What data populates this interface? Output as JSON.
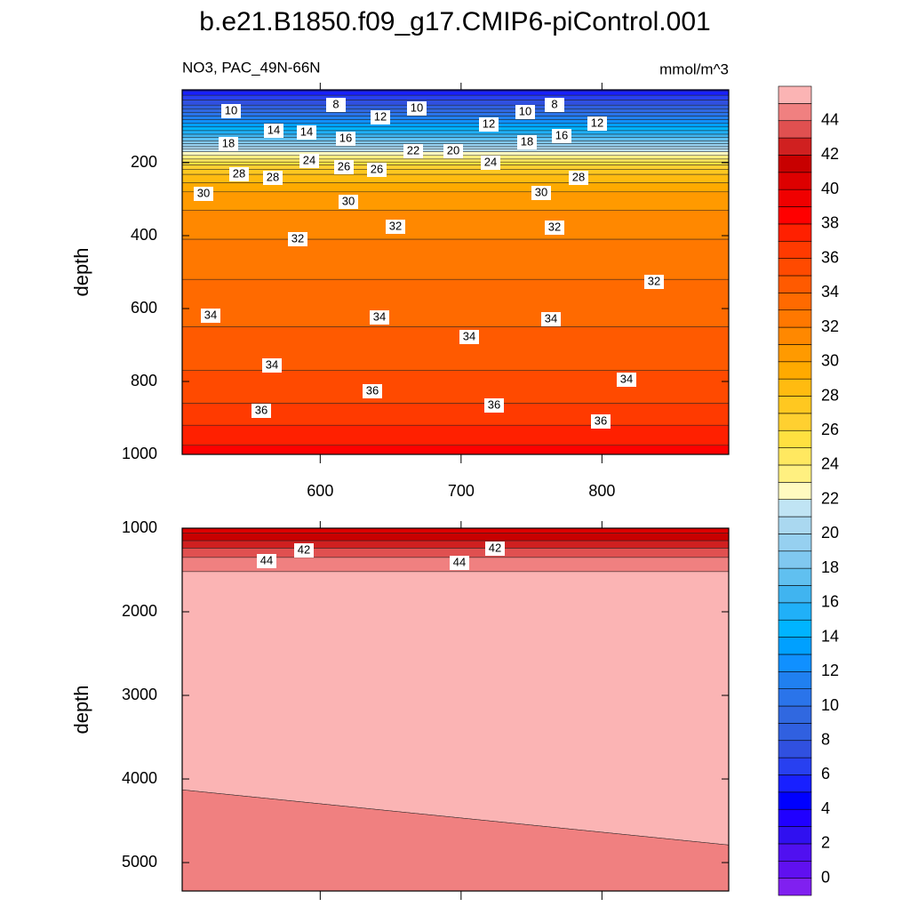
{
  "chart_data": {
    "type": "contour",
    "title": "b.e21.B1850.f09_g17.CMIP6-piControl.001",
    "subtitle_left": "NO3, PAC_49N-66N",
    "subtitle_right": "mmol/m^3",
    "xlim": [
      502,
      890
    ],
    "xticks": [
      600,
      700,
      800
    ],
    "panels": [
      {
        "ylabel": "depth",
        "ylim": [
          0,
          1000
        ],
        "yticks": [
          200,
          400,
          600,
          800,
          1000
        ],
        "show_xticklabels": true,
        "bands": [
          {
            "level": 4,
            "top": 0,
            "bottom": 3
          },
          {
            "level": 5,
            "top": 3,
            "bottom": 15
          },
          {
            "level": 6,
            "top": 15,
            "bottom": 28
          },
          {
            "level": 7,
            "top": 28,
            "bottom": 42
          },
          {
            "level": 8,
            "top": 42,
            "bottom": 52
          },
          {
            "level": 9,
            "top": 52,
            "bottom": 62
          },
          {
            "level": 10,
            "top": 62,
            "bottom": 72
          },
          {
            "level": 11,
            "top": 72,
            "bottom": 82
          },
          {
            "level": 12,
            "top": 82,
            "bottom": 92
          },
          {
            "level": 13,
            "top": 92,
            "bottom": 102
          },
          {
            "level": 14,
            "top": 102,
            "bottom": 112
          },
          {
            "level": 15,
            "top": 112,
            "bottom": 122
          },
          {
            "level": 16,
            "top": 122,
            "bottom": 131
          },
          {
            "level": 17,
            "top": 131,
            "bottom": 140
          },
          {
            "level": 18,
            "top": 140,
            "bottom": 148
          },
          {
            "level": 19,
            "top": 148,
            "bottom": 156
          },
          {
            "level": 20,
            "top": 156,
            "bottom": 163
          },
          {
            "level": 21,
            "top": 163,
            "bottom": 170
          },
          {
            "level": 22,
            "top": 170,
            "bottom": 180
          },
          {
            "level": 23,
            "top": 180,
            "bottom": 190
          },
          {
            "level": 24,
            "top": 190,
            "bottom": 198
          },
          {
            "level": 25,
            "top": 198,
            "bottom": 206
          },
          {
            "level": 26,
            "top": 206,
            "bottom": 218
          },
          {
            "level": 27,
            "top": 218,
            "bottom": 232
          },
          {
            "level": 28,
            "top": 232,
            "bottom": 255
          },
          {
            "level": 29,
            "top": 255,
            "bottom": 280
          },
          {
            "level": 30,
            "top": 280,
            "bottom": 330
          },
          {
            "level": 31,
            "top": 330,
            "bottom": 410
          },
          {
            "level": 32,
            "top": 410,
            "bottom": 520
          },
          {
            "level": 33,
            "top": 520,
            "bottom": 650
          },
          {
            "level": 34,
            "top": 650,
            "bottom": 770
          },
          {
            "level": 35,
            "top": 770,
            "bottom": 860
          },
          {
            "level": 36,
            "top": 860,
            "bottom": 920
          },
          {
            "level": 37,
            "top": 920,
            "bottom": 975
          },
          {
            "level": 38,
            "top": 975,
            "bottom": 1000
          }
        ],
        "contour_labels": [
          10,
          8,
          12,
          10,
          12,
          10,
          8,
          12,
          14,
          14,
          16,
          18,
          22,
          20,
          24,
          18,
          16,
          24,
          26,
          26,
          28,
          28,
          28,
          30,
          30,
          30,
          32,
          32,
          32,
          32,
          34,
          34,
          34,
          34,
          34,
          34,
          36,
          36,
          36,
          36
        ]
      },
      {
        "ylabel": "depth",
        "ylim": [
          1000,
          5340
        ],
        "yticks": [
          1000,
          2000,
          3000,
          4000,
          5000
        ],
        "show_xticklabels": false,
        "bands": [
          {
            "level": 40,
            "top": 1000,
            "bottom": 1060
          },
          {
            "level": 41,
            "top": 1060,
            "bottom": 1150
          },
          {
            "level": 42,
            "top": 1150,
            "bottom": 1240
          },
          {
            "level": 43,
            "top": 1240,
            "bottom": 1350
          },
          {
            "level": 44,
            "top": 1350,
            "bottom": 1520
          },
          {
            "level": 45,
            "top": 1520,
            "bottom": [
              4130,
              4790
            ]
          },
          {
            "level": 44,
            "top": [
              4130,
              4790
            ],
            "bottom": 5340
          }
        ],
        "contour_labels": [
          42,
          42,
          44,
          44
        ]
      }
    ],
    "colorbar": {
      "lim": [
        -1,
        46
      ],
      "ticks": [
        0,
        2,
        4,
        6,
        8,
        10,
        12,
        14,
        16,
        18,
        20,
        22,
        24,
        26,
        28,
        30,
        32,
        34,
        36,
        38,
        40,
        42,
        44
      ],
      "colors": [
        "#8020f0",
        "#6010f0",
        "#5010f0",
        "#3010f0",
        "#2000ff",
        "#0000ff",
        "#1820ff",
        "#2840f0",
        "#3050e0",
        "#3060e0",
        "#3068e0",
        "#2a74ea",
        "#2080f0",
        "#1090ff",
        "#00a0ff",
        "#00b4ff",
        "#20b0f8",
        "#40b4f0",
        "#60c0f0",
        "#80c8f0",
        "#96d0f0",
        "#aad8f0",
        "#c0e4f4",
        "#fffac0",
        "#fff080",
        "#ffe860",
        "#ffe040",
        "#ffd030",
        "#ffc820",
        "#ffbb10",
        "#ffaa00",
        "#ff9a00",
        "#ff8800",
        "#ff7800",
        "#ff6a00",
        "#ff5a00",
        "#ff4a00",
        "#ff3a00",
        "#ff2000",
        "#ff0000",
        "#f00000",
        "#dd0000",
        "#c80000",
        "#d02020",
        "#e05050",
        "#f08080",
        "#fbb4b4"
      ]
    }
  }
}
